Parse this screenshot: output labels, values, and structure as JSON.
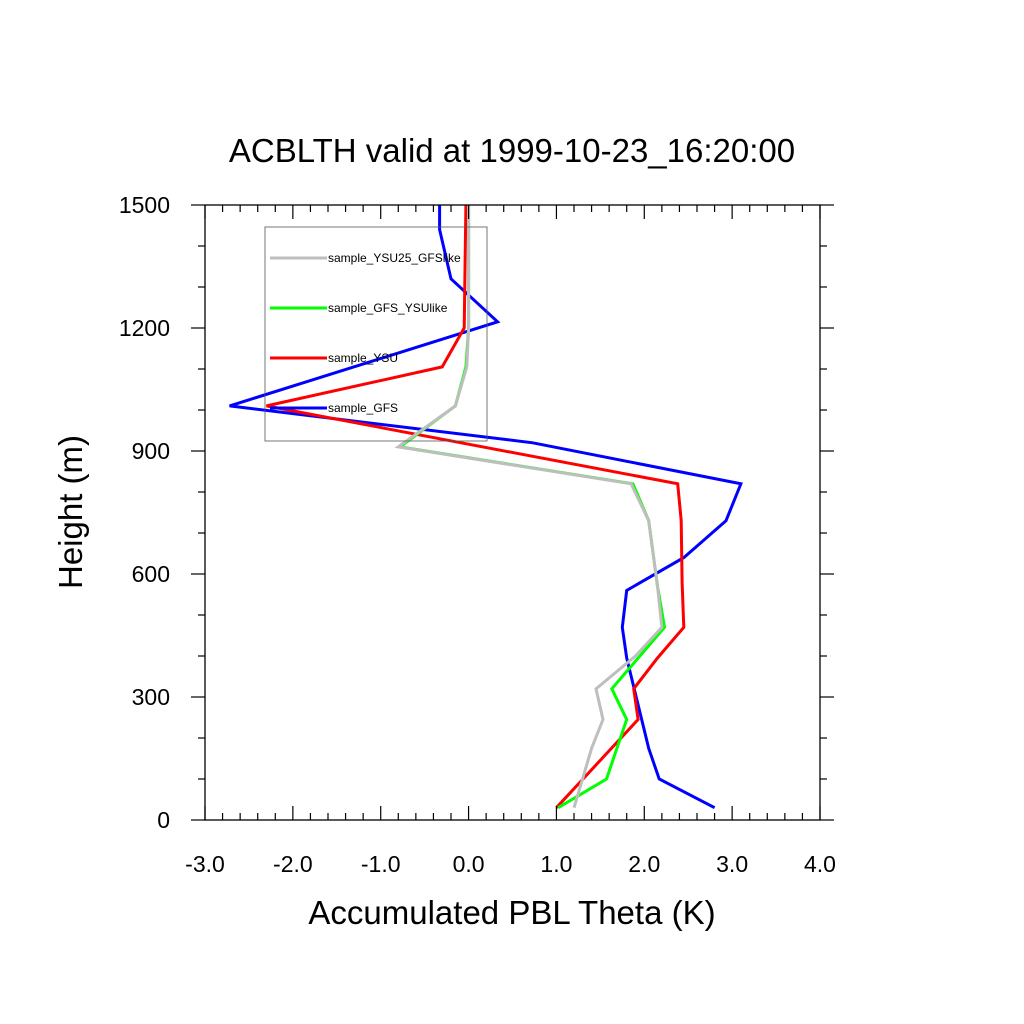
{
  "chart_data": {
    "type": "line",
    "title": "ACBLTH valid at 1999-10-23_16:20:00",
    "xlabel": "Accumulated PBL Theta (K)",
    "ylabel": "Height (m)",
    "xlim": [
      -3.0,
      4.0
    ],
    "ylim": [
      0,
      1500
    ],
    "xticks": [
      -3.0,
      -2.0,
      -1.0,
      0.0,
      1.0,
      2.0,
      3.0,
      4.0
    ],
    "xtick_labels": [
      "-3.0",
      "-2.0",
      "-1.0",
      "0.0",
      "1.0",
      "2.0",
      "3.0",
      "4.0"
    ],
    "yticks": [
      0,
      300,
      600,
      900,
      1200,
      1500
    ],
    "ytick_labels": [
      "0",
      "300",
      "600",
      "900",
      "1200",
      "1500"
    ],
    "legend_position": "top-left",
    "grid": false,
    "series": [
      {
        "name": "sample_YSU25_GFSlike",
        "color": "#bebebe",
        "points": [
          [
            1.2,
            30
          ],
          [
            1.4,
            175
          ],
          [
            1.53,
            245
          ],
          [
            1.45,
            320
          ],
          [
            1.9,
            400
          ],
          [
            2.2,
            470
          ],
          [
            2.15,
            570
          ],
          [
            2.05,
            730
          ],
          [
            1.85,
            820
          ],
          [
            -0.8,
            910
          ],
          [
            -0.15,
            1010
          ],
          [
            -0.02,
            1105
          ],
          [
            0.0,
            1200
          ],
          [
            0.0,
            1500
          ]
        ]
      },
      {
        "name": "sample_GFS_YSUlike",
        "color": "#00ff00",
        "points": [
          [
            1.02,
            30
          ],
          [
            1.57,
            100
          ],
          [
            1.8,
            245
          ],
          [
            1.63,
            320
          ],
          [
            1.95,
            400
          ],
          [
            2.23,
            470
          ],
          [
            2.15,
            570
          ],
          [
            2.05,
            730
          ],
          [
            1.87,
            820
          ],
          [
            -0.78,
            910
          ],
          [
            -0.15,
            1010
          ],
          [
            -0.03,
            1105
          ],
          [
            0.0,
            1200
          ],
          [
            0.0,
            1500
          ]
        ]
      },
      {
        "name": "sample_YSU",
        "color": "#ff0000",
        "points": [
          [
            1.0,
            30
          ],
          [
            1.93,
            245
          ],
          [
            1.88,
            320
          ],
          [
            2.15,
            395
          ],
          [
            2.45,
            470
          ],
          [
            2.43,
            580
          ],
          [
            2.42,
            730
          ],
          [
            2.38,
            820
          ],
          [
            -2.3,
            1010
          ],
          [
            -0.3,
            1105
          ],
          [
            -0.05,
            1200
          ],
          [
            -0.03,
            1500
          ]
        ]
      },
      {
        "name": "sample_GFS",
        "color": "#0000ff",
        "points": [
          [
            2.8,
            30
          ],
          [
            2.17,
            100
          ],
          [
            2.05,
            175
          ],
          [
            1.8,
            395
          ],
          [
            1.75,
            470
          ],
          [
            1.8,
            560
          ],
          [
            2.45,
            640
          ],
          [
            2.93,
            730
          ],
          [
            3.1,
            820
          ],
          [
            0.73,
            920
          ],
          [
            -2.72,
            1010
          ],
          [
            0.33,
            1215
          ],
          [
            -0.2,
            1320
          ],
          [
            -0.33,
            1440
          ],
          [
            -0.33,
            1500
          ]
        ]
      }
    ]
  }
}
